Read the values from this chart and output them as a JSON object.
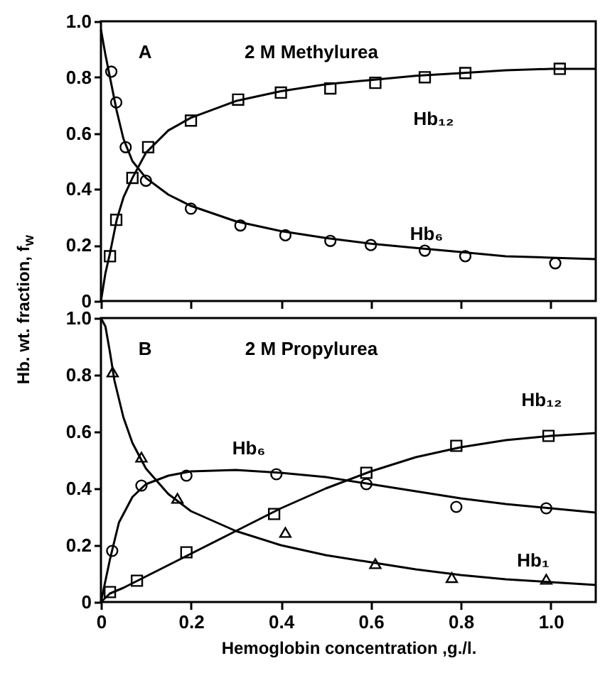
{
  "chart_data": [
    {
      "type": "scatter",
      "title": "2 M Methylurea",
      "ylabel": "Hb. wt. fraction, f$_{w}$",
      "annotations": [
        "A",
        "Hb₁₂",
        "Hb₆"
      ],
      "xlim": [
        0,
        1.1
      ],
      "ylim": [
        0,
        1
      ],
      "xticks": [
        0,
        0.2,
        0.4,
        0.6,
        0.8,
        1
      ],
      "yticks": [
        0,
        0.2,
        0.4,
        0.6,
        0.8,
        {
          "value": 1,
          "label": "1.0"
        }
      ],
      "tick_labels": "y",
      "grid": false,
      "series": [
        {
          "marker": "circle",
          "color": "#000000",
          "x": [
            0.023,
            0.034,
            0.055,
            0.1,
            0.2,
            0.31,
            0.41,
            0.51,
            0.6,
            0.72,
            0.81,
            1.01
          ],
          "values": [
            0.82,
            0.71,
            0.55,
            0.43,
            0.33,
            0.27,
            0.235,
            0.215,
            0.2,
            0.18,
            0.16,
            0.135
          ]
        },
        {
          "marker": "square",
          "color": "#000000",
          "x": [
            0.02,
            0.034,
            0.07,
            0.105,
            0.2,
            0.305,
            0.4,
            0.51,
            0.61,
            0.72,
            0.81,
            1.02
          ],
          "values": [
            0.16,
            0.29,
            0.44,
            0.55,
            0.645,
            0.72,
            0.745,
            0.76,
            0.78,
            0.8,
            0.815,
            0.83
          ]
        },
        {
          "type": "line",
          "color": "#000000",
          "x": [
            0,
            0.01,
            0.02,
            0.035,
            0.05,
            0.07,
            0.1,
            0.15,
            0.2,
            0.3,
            0.4,
            0.5,
            0.6,
            0.7,
            0.8,
            0.9,
            1.0,
            1.1
          ],
          "values": [
            0.97,
            0.88,
            0.8,
            0.68,
            0.58,
            0.5,
            0.44,
            0.38,
            0.34,
            0.285,
            0.25,
            0.225,
            0.205,
            0.19,
            0.175,
            0.16,
            0.155,
            0.15
          ]
        },
        {
          "type": "line",
          "color": "#000000",
          "x": [
            0,
            0.01,
            0.02,
            0.035,
            0.05,
            0.07,
            0.1,
            0.15,
            0.2,
            0.3,
            0.4,
            0.5,
            0.6,
            0.7,
            0.8,
            0.9,
            1.0,
            1.1
          ],
          "values": [
            0,
            0.1,
            0.17,
            0.29,
            0.37,
            0.44,
            0.53,
            0.61,
            0.655,
            0.715,
            0.75,
            0.775,
            0.79,
            0.805,
            0.815,
            0.825,
            0.83,
            0.83
          ]
        }
      ]
    },
    {
      "type": "scatter",
      "title": "2 M Propylurea",
      "xlabel": "Hemoglobin concentration ,g./l.",
      "annotations": [
        "B",
        "Hb₁₂",
        "Hb₆",
        "Hb₁"
      ],
      "xlim": [
        0,
        1.1
      ],
      "ylim": [
        0,
        1
      ],
      "xticks": [
        0,
        0.2,
        0.4,
        0.6,
        0.8,
        {
          "value": 1,
          "label": "1.0"
        }
      ],
      "yticks": [
        0,
        0.2,
        0.4,
        0.6,
        0.8,
        {
          "value": 1,
          "label": "1.0"
        }
      ],
      "grid": false,
      "series": [
        {
          "marker": "triangle",
          "color": "#000000",
          "x": [
            0.026,
            0.09,
            0.17,
            0.41,
            0.61,
            0.78,
            0.99
          ],
          "values": [
            0.81,
            0.51,
            0.365,
            0.245,
            0.135,
            0.086,
            0.08
          ]
        },
        {
          "marker": "circle",
          "color": "#000000",
          "x": [
            0.025,
            0.09,
            0.19,
            0.39,
            0.59,
            0.79,
            0.99
          ],
          "values": [
            0.18,
            0.41,
            0.445,
            0.45,
            0.415,
            0.335,
            0.33
          ]
        },
        {
          "marker": "square",
          "color": "#000000",
          "x": [
            0.02,
            0.08,
            0.19,
            0.385,
            0.59,
            0.79,
            0.995
          ],
          "values": [
            0.035,
            0.075,
            0.175,
            0.31,
            0.455,
            0.55,
            0.585
          ]
        },
        {
          "type": "line",
          "color": "#000000",
          "x": [
            0,
            0.01,
            0.02,
            0.03,
            0.05,
            0.07,
            0.1,
            0.15,
            0.2,
            0.3,
            0.4,
            0.5,
            0.6,
            0.7,
            0.8,
            0.9,
            1.0,
            1.1
          ],
          "values": [
            1.0,
            0.97,
            0.88,
            0.78,
            0.65,
            0.56,
            0.47,
            0.38,
            0.32,
            0.25,
            0.2,
            0.165,
            0.14,
            0.115,
            0.095,
            0.08,
            0.07,
            0.06
          ]
        },
        {
          "type": "line",
          "color": "#000000",
          "x": [
            0,
            0.02,
            0.04,
            0.07,
            0.1,
            0.15,
            0.2,
            0.3,
            0.4,
            0.5,
            0.6,
            0.7,
            0.8,
            0.9,
            1.0,
            1.1
          ],
          "values": [
            0,
            0.15,
            0.28,
            0.37,
            0.415,
            0.445,
            0.46,
            0.465,
            0.455,
            0.44,
            0.415,
            0.39,
            0.365,
            0.345,
            0.33,
            0.315
          ]
        },
        {
          "type": "line",
          "color": "#000000",
          "x": [
            0,
            0.02,
            0.05,
            0.1,
            0.2,
            0.3,
            0.4,
            0.5,
            0.6,
            0.7,
            0.8,
            0.9,
            1.0,
            1.1
          ],
          "values": [
            0,
            0.03,
            0.05,
            0.09,
            0.17,
            0.25,
            0.33,
            0.4,
            0.46,
            0.51,
            0.545,
            0.57,
            0.585,
            0.595
          ]
        }
      ]
    }
  ]
}
